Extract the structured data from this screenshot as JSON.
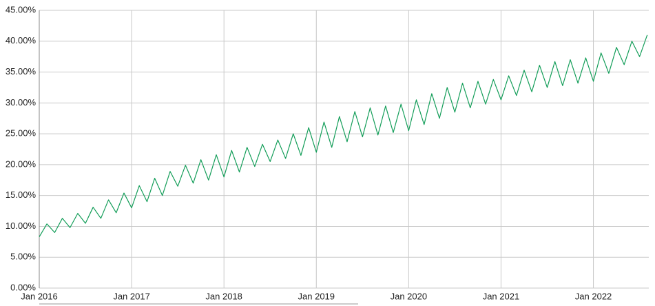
{
  "chart_data": {
    "type": "line",
    "color": "#129d58",
    "grid": true,
    "xlim": [
      2016,
      2022.6
    ],
    "xticks": [
      {
        "value": 2016,
        "label": "Jan 2016"
      },
      {
        "value": 2017,
        "label": "Jan 2017"
      },
      {
        "value": 2018,
        "label": "Jan 2018"
      },
      {
        "value": 2019,
        "label": "Jan 2019"
      },
      {
        "value": 2020,
        "label": "Jan 2020"
      },
      {
        "value": 2021,
        "label": "Jan 2021"
      },
      {
        "value": 2022,
        "label": "Jan 2022"
      }
    ],
    "ylim": [
      0,
      45
    ],
    "yticks": [
      {
        "value": 0,
        "label": "0.00%"
      },
      {
        "value": 5,
        "label": "5.00%"
      },
      {
        "value": 10,
        "label": "10.00%"
      },
      {
        "value": 15,
        "label": "15.00%"
      },
      {
        "value": 20,
        "label": "20.00%"
      },
      {
        "value": 25,
        "label": "25.00%"
      },
      {
        "value": 30,
        "label": "30.00%"
      },
      {
        "value": 35,
        "label": "35.00%"
      },
      {
        "value": 40,
        "label": "40.00%"
      },
      {
        "value": 45,
        "label": "45.00%"
      }
    ],
    "x": [
      2016,
      2016.083,
      2016.167,
      2016.25,
      2016.333,
      2016.417,
      2016.5,
      2016.583,
      2016.667,
      2016.75,
      2016.833,
      2016.917,
      2017,
      2017.083,
      2017.167,
      2017.25,
      2017.333,
      2017.417,
      2017.5,
      2017.583,
      2017.667,
      2017.75,
      2017.833,
      2017.917,
      2018,
      2018.083,
      2018.167,
      2018.25,
      2018.333,
      2018.417,
      2018.5,
      2018.583,
      2018.667,
      2018.75,
      2018.833,
      2018.917,
      2019,
      2019.083,
      2019.167,
      2019.25,
      2019.333,
      2019.417,
      2019.5,
      2019.583,
      2019.667,
      2019.75,
      2019.833,
      2019.917,
      2020,
      2020.083,
      2020.167,
      2020.25,
      2020.333,
      2020.417,
      2020.5,
      2020.583,
      2020.667,
      2020.75,
      2020.833,
      2020.917,
      2021,
      2021.083,
      2021.167,
      2021.25,
      2021.333,
      2021.417,
      2021.5,
      2021.583,
      2021.667,
      2021.75,
      2021.833,
      2021.917,
      2022,
      2022.083,
      2022.167,
      2022.25,
      2022.333,
      2022.417,
      2022.5,
      2022.583
    ],
    "values": [
      8.3,
      10.4,
      9.0,
      11.3,
      9.8,
      12.1,
      10.5,
      13.1,
      11.3,
      14.3,
      12.2,
      15.4,
      13.0,
      16.6,
      14.0,
      17.8,
      15.0,
      18.9,
      16.5,
      19.9,
      17.0,
      20.8,
      17.5,
      21.6,
      18.0,
      22.3,
      18.8,
      22.8,
      19.7,
      23.3,
      20.5,
      24.0,
      21.0,
      25.0,
      21.5,
      26.0,
      22.0,
      26.9,
      22.8,
      27.8,
      23.7,
      28.6,
      24.5,
      29.2,
      24.8,
      29.5,
      25.2,
      29.8,
      25.5,
      30.5,
      26.5,
      31.5,
      27.5,
      32.5,
      28.5,
      33.2,
      29.2,
      33.5,
      29.8,
      33.8,
      30.5,
      34.4,
      31.2,
      35.3,
      31.8,
      36.1,
      32.5,
      36.7,
      32.8,
      37.0,
      33.2,
      37.3,
      33.5,
      38.1,
      34.8,
      39.0,
      36.2,
      40.0,
      37.5,
      41.0
    ]
  }
}
